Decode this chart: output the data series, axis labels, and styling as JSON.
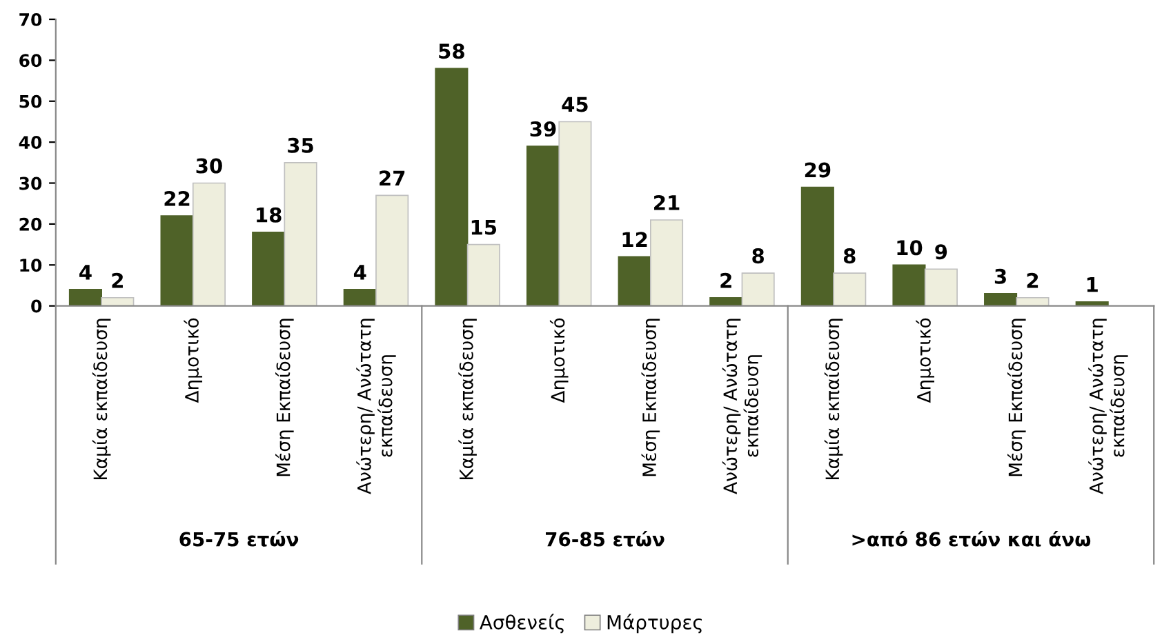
{
  "chart_data": {
    "type": "bar",
    "categories": [
      "Καμία εκπαίδευση",
      "Δημοτικό",
      "Μέση Εκπαίδευση",
      "Ανώτερη/ Ανώτατη εκπαίδευση",
      "Καμία εκπαίδευση",
      "Δημοτικό",
      "Μέση Εκπαίδευση",
      "Ανώτερη/ Ανώτατη εκπαίδευση",
      "Καμία εκπαίδευση",
      "Δημοτικό",
      "Μέση Εκπαίδευση",
      "Ανώτερη/ Ανώτατη εκπαίδευση"
    ],
    "series": [
      {
        "name": "Ασθενείς",
        "color": "#4f6228",
        "values": [
          4,
          22,
          18,
          4,
          58,
          39,
          12,
          2,
          29,
          10,
          3,
          1
        ]
      },
      {
        "name": "Μάρτυρες",
        "color": "#eeeedd",
        "values": [
          2,
          30,
          35,
          27,
          15,
          45,
          21,
          8,
          8,
          9,
          2,
          null
        ]
      }
    ],
    "annotations": [
      "65-75 ετών",
      "76-85 ετών",
      ">από 86 ετών και άνω"
    ],
    "ylim": [
      0,
      70
    ],
    "yticks": [
      0,
      10,
      20,
      30,
      40,
      50,
      60,
      70
    ],
    "grid": false,
    "legend": "bottom",
    "data_labels": true
  }
}
